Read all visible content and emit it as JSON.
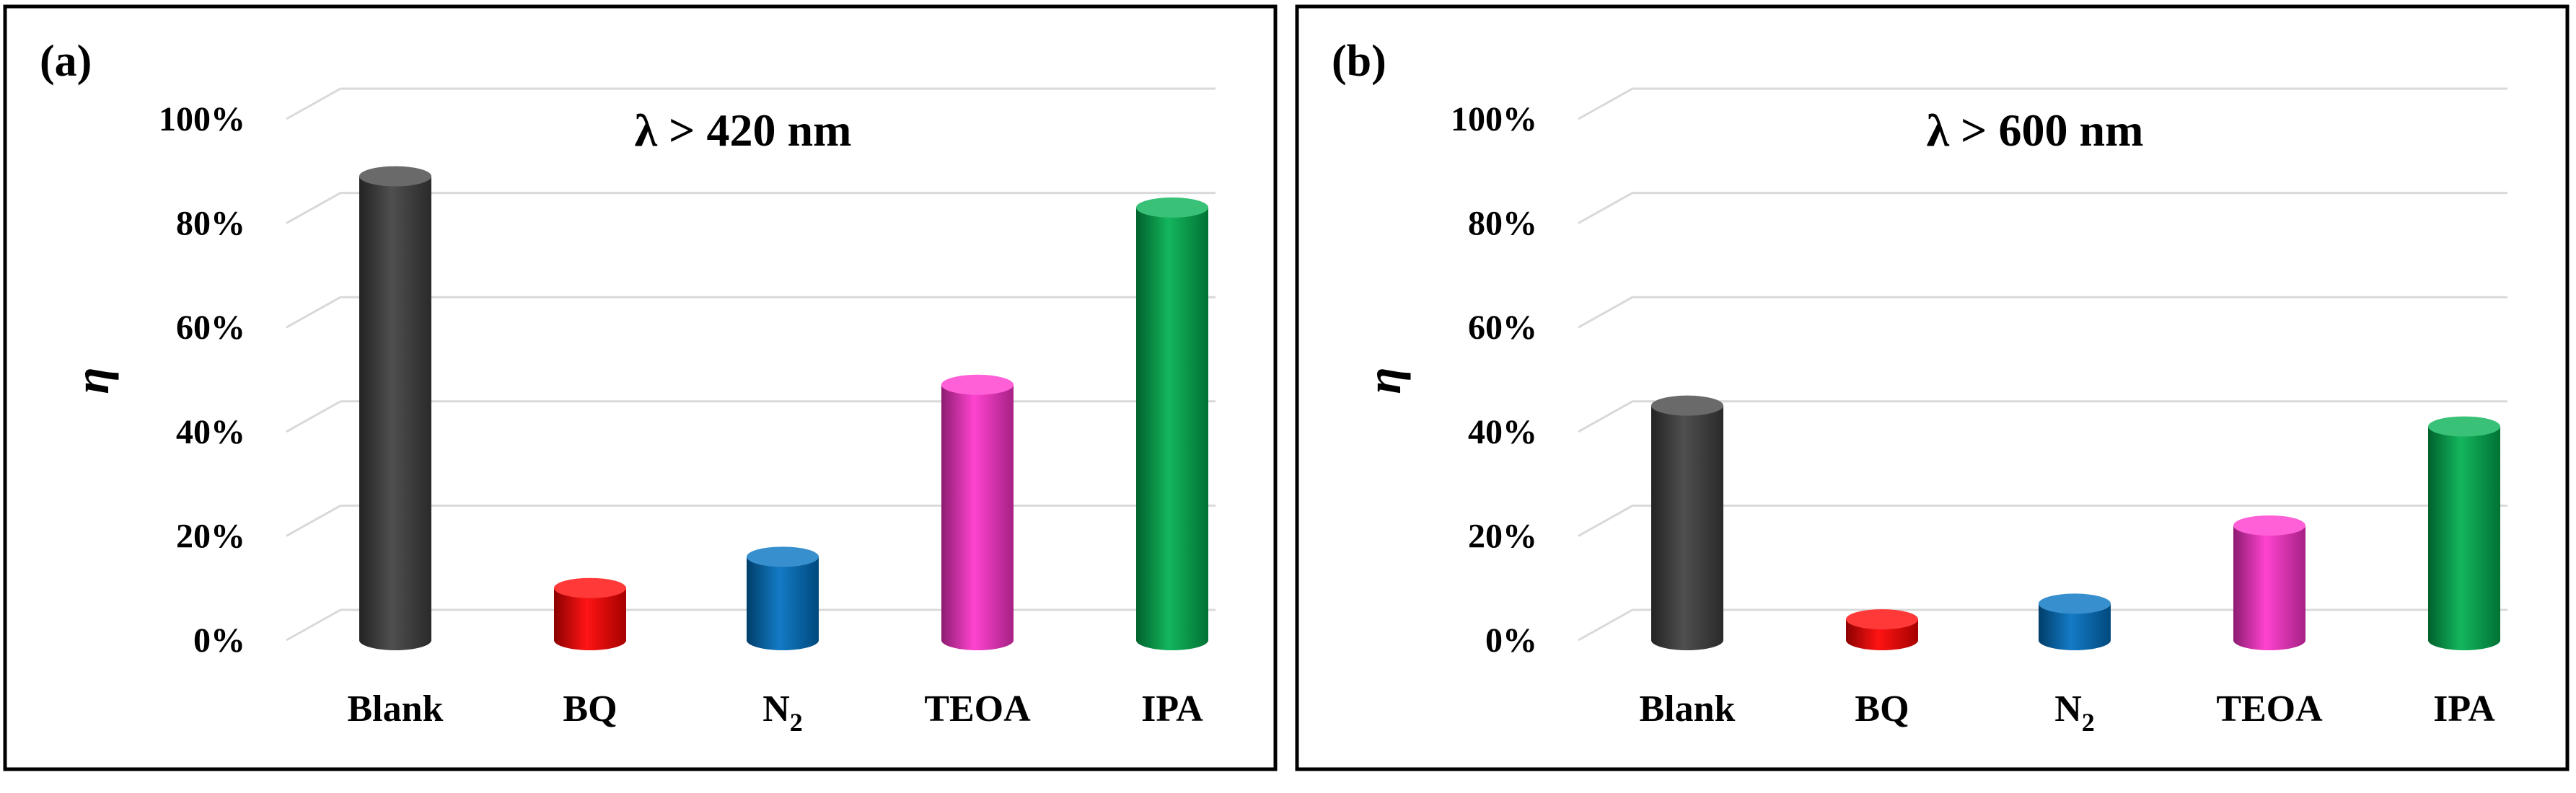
{
  "chart_data": [
    {
      "type": "bar",
      "panel_label": "(a)",
      "title": "λ > 420 nm",
      "ylabel": "η",
      "xlabel": "",
      "categories": [
        "Blank",
        "BQ",
        "N2",
        "TEOA",
        "IPA"
      ],
      "category_labels": [
        {
          "main": "Blank",
          "sub": ""
        },
        {
          "main": "BQ",
          "sub": ""
        },
        {
          "main": "N",
          "sub": "2"
        },
        {
          "main": "TEOA",
          "sub": ""
        },
        {
          "main": "IPA",
          "sub": ""
        }
      ],
      "values": [
        89,
        10,
        16,
        49,
        83
      ],
      "colors": [
        "#404040",
        "#ff0000",
        "#0070c0",
        "#ff33cc",
        "#00b050"
      ],
      "ylim": [
        0,
        100
      ],
      "y_ticks": [
        0,
        20,
        40,
        60,
        80,
        100
      ],
      "y_tick_labels": [
        "0%",
        "20%",
        "40%",
        "60%",
        "80%",
        "100%"
      ],
      "grid": true,
      "legend": "none"
    },
    {
      "type": "bar",
      "panel_label": "(b)",
      "title": "λ > 600 nm",
      "ylabel": "η",
      "xlabel": "",
      "categories": [
        "Blank",
        "BQ",
        "N2",
        "TEOA",
        "IPA"
      ],
      "category_labels": [
        {
          "main": "Blank",
          "sub": ""
        },
        {
          "main": "BQ",
          "sub": ""
        },
        {
          "main": "N",
          "sub": "2"
        },
        {
          "main": "TEOA",
          "sub": ""
        },
        {
          "main": "IPA",
          "sub": ""
        }
      ],
      "values": [
        45,
        4,
        7,
        22,
        41
      ],
      "colors": [
        "#404040",
        "#ff0000",
        "#0070c0",
        "#ff33cc",
        "#00b050"
      ],
      "ylim": [
        0,
        100
      ],
      "y_ticks": [
        0,
        20,
        40,
        60,
        80,
        100
      ],
      "y_tick_labels": [
        "0%",
        "20%",
        "40%",
        "60%",
        "80%",
        "100%"
      ],
      "grid": true,
      "legend": "none"
    }
  ]
}
